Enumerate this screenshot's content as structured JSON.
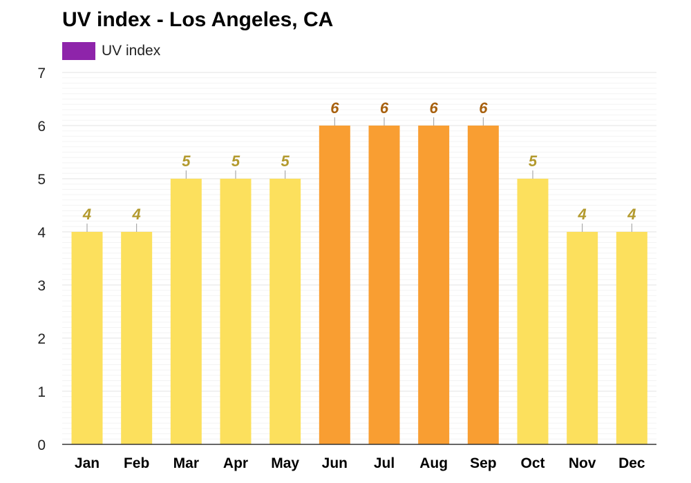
{
  "chart_data": {
    "type": "bar",
    "title": "UV index - Los Angeles, CA",
    "xlabel": "",
    "ylabel": "",
    "categories": [
      "Jan",
      "Feb",
      "Mar",
      "Apr",
      "May",
      "Jun",
      "Jul",
      "Aug",
      "Sep",
      "Oct",
      "Nov",
      "Dec"
    ],
    "series": [
      {
        "name": "UV index",
        "values": [
          4,
          4,
          5,
          5,
          5,
          6,
          6,
          6,
          6,
          5,
          4,
          4
        ]
      }
    ],
    "ylim": [
      0,
      7
    ],
    "yticks": [
      0,
      1,
      2,
      3,
      4,
      5,
      6,
      7
    ],
    "grid": true,
    "legend_position": "top-left",
    "data_labels": true,
    "colors": {
      "legend": "#8e24aa",
      "moderate_bar": "#fce05d",
      "moderate_label": "#b39a2e",
      "high_bar": "#f99e32",
      "high_label": "#a8610f",
      "grid": "#e3e3e3",
      "axis": "#333333"
    }
  }
}
